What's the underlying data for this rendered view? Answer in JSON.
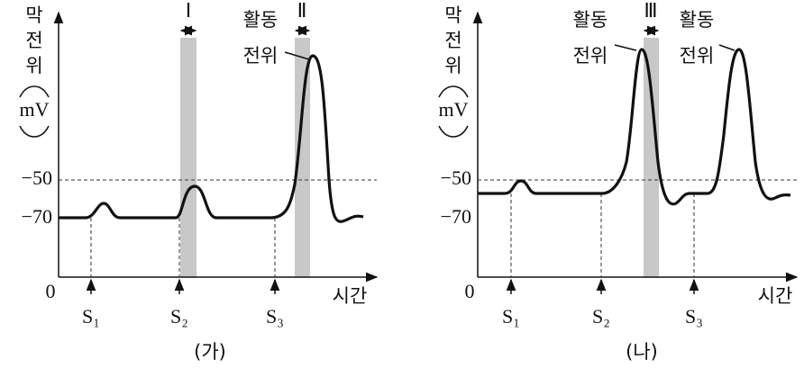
{
  "panels": [
    {
      "caption": "(가)",
      "y_axis_label": [
        "막",
        "전",
        "위",
        "mV"
      ],
      "x_axis_label": "시간",
      "origin": "0",
      "tick_labels": [
        "−50",
        "−70"
      ],
      "stimuli": [
        "S₁",
        "S₂",
        "S₃"
      ],
      "markers": [
        "Ⅰ",
        "Ⅱ"
      ],
      "annotations": [
        [
          "활동",
          "전위"
        ]
      ]
    },
    {
      "caption": "(나)",
      "y_axis_label": [
        "막",
        "전",
        "위",
        "mV"
      ],
      "x_axis_label": "시간",
      "origin": "0",
      "tick_labels": [
        "−50",
        "−70"
      ],
      "stimuli": [
        "S₁",
        "S₂",
        "S₃"
      ],
      "markers": [
        "Ⅲ"
      ],
      "annotations": [
        [
          "활동",
          "전위"
        ],
        [
          "활동",
          "전위"
        ]
      ]
    }
  ]
}
